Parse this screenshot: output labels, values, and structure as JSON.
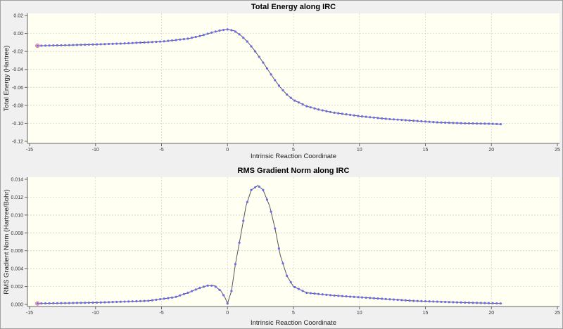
{
  "chart_data": [
    {
      "type": "line",
      "title": "Total Energy along IRC",
      "xlabel": "Intrinsic Reaction Coordinate",
      "ylabel": "Total Energy (Hartree)",
      "xlim": [
        -15,
        25
      ],
      "ylim": [
        -0.12,
        0.02
      ],
      "xticks": [
        -15,
        -10,
        -5,
        0,
        5,
        10,
        15,
        20,
        25
      ],
      "yticks": [
        "0.02",
        "0.00",
        "-0.02",
        "-0.04",
        "-0.06",
        "-0.08",
        "-0.10",
        "-0.12"
      ],
      "grid": true,
      "series": [
        {
          "name": "Total Energy",
          "x": [
            -14.4,
            -12,
            -10,
            -8,
            -6,
            -5,
            -4,
            -3,
            -2,
            -1,
            -0.5,
            0,
            0.5,
            1,
            1.5,
            2,
            2.5,
            3,
            3.5,
            4,
            4.5,
            5,
            6,
            7,
            8,
            10,
            12,
            14,
            16,
            18,
            20,
            20.8
          ],
          "y": [
            -0.0137,
            -0.013,
            -0.0122,
            -0.0112,
            -0.0098,
            -0.009,
            -0.0075,
            -0.0058,
            -0.0025,
            0.0018,
            0.0035,
            0.0045,
            0.003,
            -0.002,
            -0.009,
            -0.018,
            -0.028,
            -0.039,
            -0.05,
            -0.06,
            -0.068,
            -0.074,
            -0.081,
            -0.085,
            -0.088,
            -0.092,
            -0.095,
            -0.097,
            -0.099,
            -0.1,
            -0.1005,
            -0.101
          ]
        }
      ]
    },
    {
      "type": "line",
      "title": "RMS Gradient Norm along IRC",
      "xlabel": "Intrinsic Reaction Coordinate",
      "ylabel": "RMS Gradient Norm (Hartree/Bohr)",
      "xlim": [
        -15,
        25
      ],
      "ylim": [
        0,
        0.014
      ],
      "xticks": [
        -15,
        -10,
        -5,
        0,
        5,
        10,
        15,
        20,
        25
      ],
      "yticks": [
        "0.014",
        "0.012",
        "0.010",
        "0.008",
        "0.006",
        "0.004",
        "0.002",
        "0.000"
      ],
      "grid": true,
      "series": [
        {
          "name": "RMS Gradient Norm",
          "x": [
            -14.4,
            -12,
            -10,
            -8,
            -6,
            -5,
            -4,
            -3,
            -2,
            -1.5,
            -1,
            -0.5,
            -0.2,
            0,
            0.3,
            0.6,
            1,
            1.4,
            1.8,
            2.3,
            2.7,
            3.2,
            3.6,
            4,
            4.5,
            5,
            6,
            8,
            10,
            12,
            14,
            16,
            18,
            20.8
          ],
          "y": [
            0.0001,
            0.00015,
            0.0002,
            0.0003,
            0.0004,
            0.0006,
            0.0008,
            0.0013,
            0.0019,
            0.0021,
            0.0021,
            0.0015,
            0.0008,
            0.0001,
            0.0015,
            0.0045,
            0.0077,
            0.011,
            0.0128,
            0.0133,
            0.0128,
            0.011,
            0.0085,
            0.0055,
            0.0032,
            0.002,
            0.0013,
            0.001,
            0.0008,
            0.0006,
            0.0004,
            0.0003,
            0.0002,
            0.0001
          ]
        }
      ]
    }
  ]
}
